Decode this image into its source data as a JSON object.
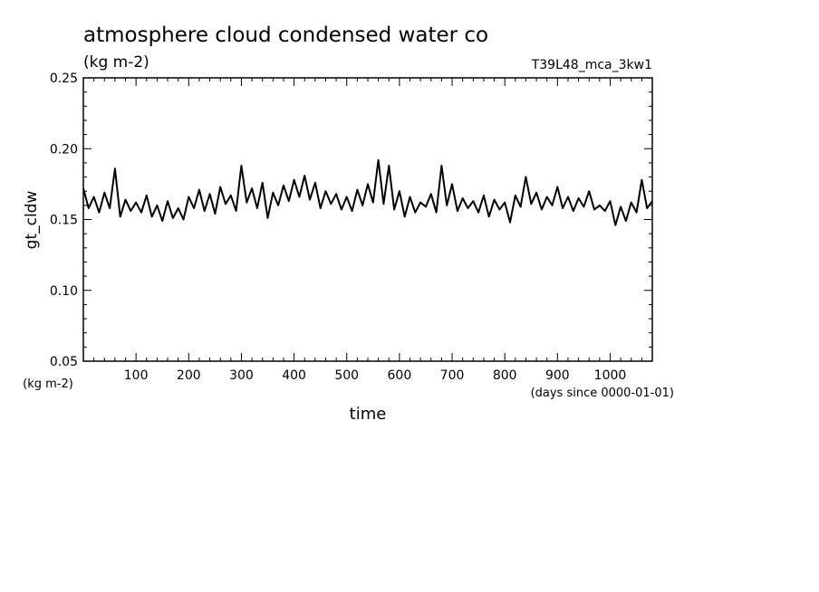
{
  "chart_data": {
    "type": "line",
    "title": "atmosphere cloud condensed water co",
    "subtitle": "(kg m-2)",
    "run_label": "T39L48_mca_3kw1",
    "xlabel": "time",
    "x_units": "(days since 0000-01-01)",
    "ylabel": "gt_cldw",
    "y_units": "(kg m-2)",
    "xlim": [
      0,
      1080
    ],
    "ylim": [
      0.05,
      0.25
    ],
    "x_ticks": [
      100,
      200,
      300,
      400,
      500,
      600,
      700,
      800,
      900,
      1000
    ],
    "x_tick_labels": [
      "100",
      "200",
      "300",
      "400",
      "500",
      "600",
      "700",
      "800",
      "900",
      "1000"
    ],
    "y_ticks": [
      0.05,
      0.1,
      0.15,
      0.2,
      0.25
    ],
    "y_tick_labels": [
      "0.05",
      "0.10",
      "0.15",
      "0.20",
      "0.25"
    ],
    "grid": false,
    "series": [
      {
        "x": [
          0,
          10,
          20,
          30,
          40,
          50,
          60,
          70,
          80,
          90,
          100,
          110,
          120,
          130,
          140,
          150,
          160,
          170,
          180,
          190,
          200,
          210,
          220,
          230,
          240,
          250,
          260,
          270,
          280,
          290,
          300,
          310,
          320,
          330,
          340,
          350,
          360,
          370,
          380,
          390,
          400,
          410,
          420,
          430,
          440,
          450,
          460,
          470,
          480,
          490,
          500,
          510,
          520,
          530,
          540,
          550,
          560,
          570,
          580,
          590,
          600,
          610,
          620,
          630,
          640,
          650,
          660,
          670,
          680,
          690,
          700,
          710,
          720,
          730,
          740,
          750,
          760,
          770,
          780,
          790,
          800,
          810,
          820,
          830,
          840,
          850,
          860,
          870,
          880,
          890,
          900,
          910,
          920,
          930,
          940,
          950,
          960,
          970,
          980,
          990,
          1000,
          1010,
          1020,
          1030,
          1040,
          1050,
          1060,
          1070,
          1080
        ],
        "y": [
          0.172,
          0.158,
          0.166,
          0.155,
          0.169,
          0.158,
          0.186,
          0.152,
          0.164,
          0.156,
          0.162,
          0.155,
          0.167,
          0.152,
          0.16,
          0.149,
          0.163,
          0.151,
          0.158,
          0.15,
          0.166,
          0.158,
          0.171,
          0.156,
          0.168,
          0.154,
          0.173,
          0.161,
          0.167,
          0.156,
          0.188,
          0.162,
          0.172,
          0.158,
          0.176,
          0.151,
          0.169,
          0.16,
          0.174,
          0.163,
          0.178,
          0.166,
          0.181,
          0.164,
          0.176,
          0.158,
          0.17,
          0.161,
          0.168,
          0.157,
          0.166,
          0.156,
          0.171,
          0.16,
          0.175,
          0.162,
          0.192,
          0.161,
          0.188,
          0.157,
          0.17,
          0.152,
          0.166,
          0.155,
          0.162,
          0.159,
          0.168,
          0.155,
          0.188,
          0.16,
          0.175,
          0.156,
          0.165,
          0.158,
          0.163,
          0.155,
          0.167,
          0.152,
          0.164,
          0.157,
          0.162,
          0.148,
          0.167,
          0.159,
          0.18,
          0.161,
          0.169,
          0.157,
          0.166,
          0.16,
          0.173,
          0.158,
          0.166,
          0.156,
          0.165,
          0.159,
          0.17,
          0.157,
          0.16,
          0.156,
          0.163,
          0.146,
          0.159,
          0.149,
          0.162,
          0.155,
          0.178,
          0.158,
          0.163
        ]
      }
    ]
  }
}
